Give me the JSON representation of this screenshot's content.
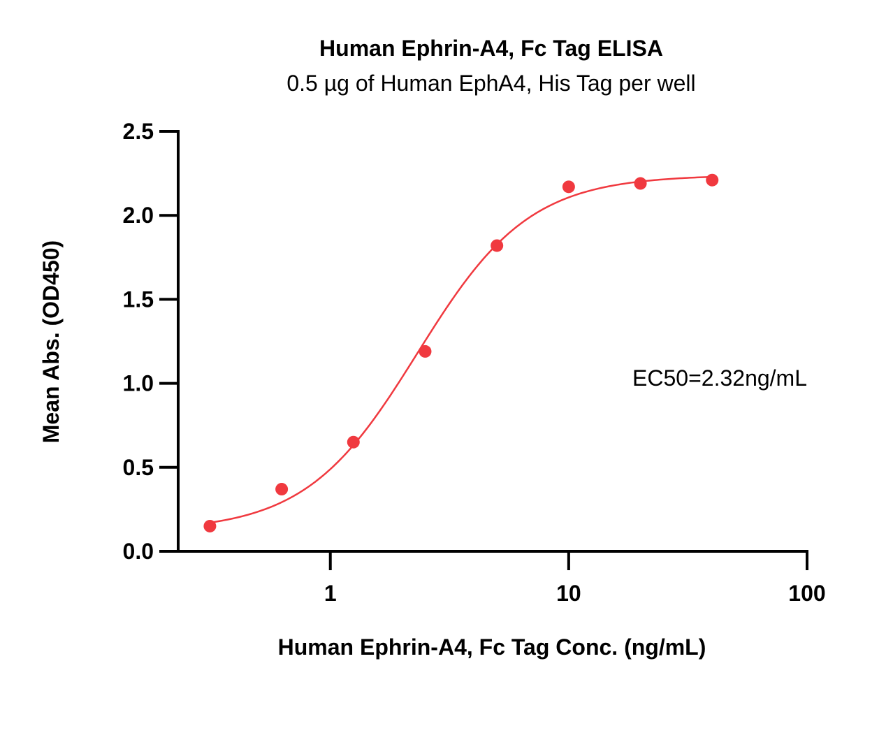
{
  "chart_data": {
    "type": "scatter",
    "title": "Human Ephrin-A4, Fc Tag ELISA",
    "subtitle": "0.5 µg of Human EphA4, His Tag per well",
    "xlabel": "Human Ephrin-A4, Fc Tag Conc. (ng/mL)",
    "ylabel": "Mean Abs. (OD450)",
    "x_scale": "log",
    "xlim": [
      0.23,
      100
    ],
    "ylim": [
      0,
      2.5
    ],
    "x_ticks": [
      1,
      10,
      100
    ],
    "x_tick_labels": [
      "1",
      "10",
      "100"
    ],
    "y_ticks": [
      0,
      0.5,
      1.0,
      1.5,
      2.0,
      2.5
    ],
    "y_tick_labels": [
      "0.0",
      "0.5",
      "1.0",
      "1.5",
      "2.0",
      "2.5"
    ],
    "grid": false,
    "series": [
      {
        "color": "#f0393f",
        "x": [
          0.3125,
          0.625,
          1.25,
          2.5,
          5,
          10,
          20,
          40
        ],
        "y": [
          0.15,
          0.37,
          0.65,
          1.19,
          1.82,
          2.17,
          2.19,
          2.21
        ]
      }
    ],
    "fit": {
      "model": "4PL",
      "bottom": 0.12,
      "top": 2.24,
      "ec50": 2.32,
      "hill": 1.85,
      "color": "#f0393f"
    },
    "annotation": "EC50=2.32ng/mL"
  }
}
